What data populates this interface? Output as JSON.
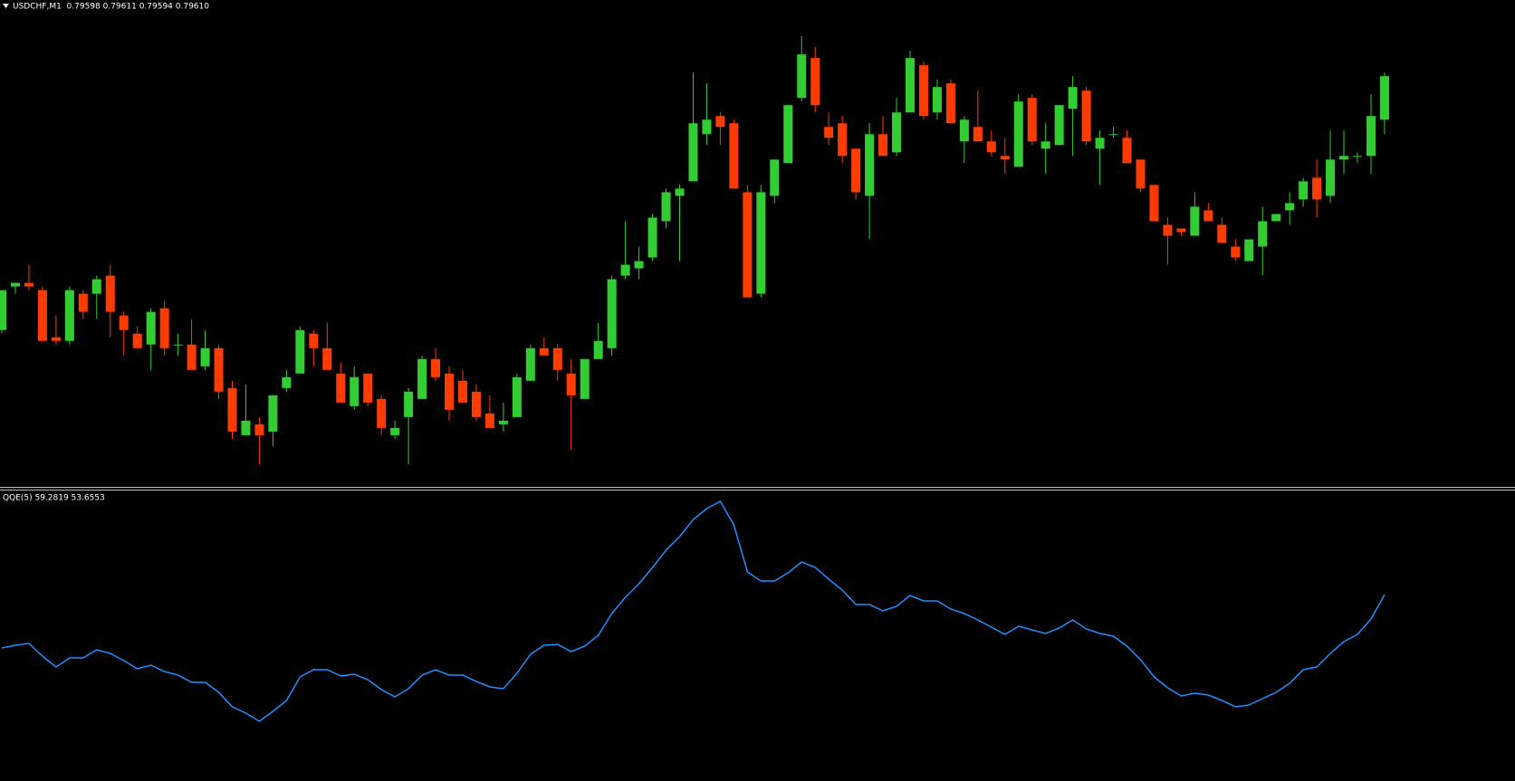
{
  "chart_data": [
    {
      "type": "candlestick",
      "title": "USDCHF,M1  0.79598 0.79611 0.79594 0.79610",
      "up_color": "#32cd32",
      "down_color": "#ff3c00",
      "ylim": [
        0.79497,
        0.79631
      ],
      "open": [
        0.7954,
        0.79552,
        0.79553,
        0.79551,
        0.79538,
        0.79537,
        0.7955,
        0.7955,
        0.79555,
        0.79544,
        0.79539,
        0.79536,
        0.79546,
        0.79536,
        0.79536,
        0.7953,
        0.79535,
        0.79524,
        0.79511,
        0.79514,
        0.79512,
        0.79524,
        0.79528,
        0.79539,
        0.79535,
        0.79528,
        0.79519,
        0.79528,
        0.79521,
        0.79511,
        0.79516,
        0.79521,
        0.79532,
        0.79528,
        0.79526,
        0.79523,
        0.79517,
        0.79514,
        0.79516,
        0.79526,
        0.79535,
        0.79535,
        0.79528,
        0.79521,
        0.79532,
        0.79535,
        0.79555,
        0.79557,
        0.7956,
        0.7957,
        0.79577,
        0.79581,
        0.79594,
        0.79599,
        0.79597,
        0.79578,
        0.7955,
        0.79577,
        0.79586,
        0.79604,
        0.79615,
        0.79596,
        0.79597,
        0.7959,
        0.79577,
        0.79594,
        0.79589,
        0.796,
        0.79613,
        0.796,
        0.79608,
        0.79592,
        0.79596,
        0.79592,
        0.79588,
        0.79585,
        0.79604,
        0.7959,
        0.79591,
        0.79601,
        0.79606,
        0.7959,
        0.79594,
        0.79593,
        0.79587,
        0.7958,
        0.79569,
        0.79568,
        0.79566,
        0.79573,
        0.79569,
        0.79563,
        0.79559,
        0.79563,
        0.7957,
        0.79573,
        0.79576,
        0.79582,
        0.79577,
        0.79587,
        0.79588,
        0.79588,
        0.79598
      ],
      "high": [
        0.79551,
        0.79553,
        0.79558,
        0.79552,
        0.79544,
        0.79552,
        0.79551,
        0.79555,
        0.79558,
        0.79545,
        0.79541,
        0.79546,
        0.79548,
        0.79539,
        0.79543,
        0.7954,
        0.79536,
        0.79526,
        0.79525,
        0.79516,
        0.79522,
        0.79529,
        0.79541,
        0.7954,
        0.79542,
        0.79531,
        0.7953,
        0.79528,
        0.79522,
        0.79515,
        0.79524,
        0.79533,
        0.79535,
        0.7953,
        0.79529,
        0.79525,
        0.79522,
        0.7952,
        0.79528,
        0.79536,
        0.79538,
        0.79536,
        0.79532,
        0.79532,
        0.79542,
        0.79555,
        0.7957,
        0.79563,
        0.79572,
        0.79579,
        0.7958,
        0.79611,
        0.79608,
        0.796,
        0.79598,
        0.7958,
        0.7958,
        0.79587,
        0.79602,
        0.79621,
        0.79618,
        0.796,
        0.79599,
        0.7959,
        0.79597,
        0.79599,
        0.79604,
        0.79617,
        0.79614,
        0.79609,
        0.79609,
        0.79599,
        0.79606,
        0.79595,
        0.79593,
        0.79605,
        0.79605,
        0.79597,
        0.79602,
        0.7961,
        0.79607,
        0.79595,
        0.79596,
        0.79595,
        0.79587,
        0.7958,
        0.79571,
        0.79568,
        0.79578,
        0.79575,
        0.79571,
        0.79565,
        0.79565,
        0.79574,
        0.79572,
        0.79578,
        0.79582,
        0.79587,
        0.79595,
        0.79595,
        0.79589,
        0.79605,
        0.79611
      ],
      "low": [
        0.79539,
        0.7955,
        0.79551,
        0.79537,
        0.79536,
        0.79536,
        0.79543,
        0.79543,
        0.79538,
        0.79533,
        0.79535,
        0.79529,
        0.79533,
        0.79533,
        0.79529,
        0.79529,
        0.79521,
        0.7951,
        0.79511,
        0.79503,
        0.79508,
        0.79523,
        0.79528,
        0.7953,
        0.79529,
        0.7952,
        0.79518,
        0.79519,
        0.79511,
        0.7951,
        0.79503,
        0.79521,
        0.79526,
        0.79515,
        0.7952,
        0.79515,
        0.79513,
        0.79512,
        0.79516,
        0.79526,
        0.79533,
        0.79526,
        0.79507,
        0.79521,
        0.79532,
        0.79533,
        0.79554,
        0.79554,
        0.79559,
        0.79568,
        0.79559,
        0.79581,
        0.79591,
        0.79591,
        0.79579,
        0.79549,
        0.79549,
        0.79575,
        0.79586,
        0.79603,
        0.796,
        0.79591,
        0.79586,
        0.79576,
        0.79565,
        0.79588,
        0.79588,
        0.796,
        0.79598,
        0.79598,
        0.79597,
        0.79586,
        0.79592,
        0.79588,
        0.79583,
        0.79585,
        0.79591,
        0.79583,
        0.79591,
        0.79588,
        0.79591,
        0.7958,
        0.79593,
        0.79586,
        0.79578,
        0.7957,
        0.79558,
        0.79566,
        0.79566,
        0.7957,
        0.79564,
        0.79559,
        0.79559,
        0.79555,
        0.7957,
        0.79569,
        0.79574,
        0.79571,
        0.79575,
        0.79583,
        0.79586,
        0.79583,
        0.79594
      ],
      "close": [
        0.79551,
        0.79553,
        0.79552,
        0.79537,
        0.79537,
        0.79551,
        0.79545,
        0.79554,
        0.79545,
        0.7954,
        0.79535,
        0.79545,
        0.79535,
        0.79536,
        0.79529,
        0.79535,
        0.79523,
        0.79512,
        0.79515,
        0.79511,
        0.79522,
        0.79527,
        0.7954,
        0.79535,
        0.79529,
        0.7952,
        0.79527,
        0.7952,
        0.79513,
        0.79513,
        0.79523,
        0.79532,
        0.79527,
        0.79518,
        0.7952,
        0.79516,
        0.79513,
        0.79515,
        0.79527,
        0.79535,
        0.79533,
        0.79529,
        0.79522,
        0.79532,
        0.79537,
        0.79554,
        0.79558,
        0.79559,
        0.79571,
        0.79578,
        0.79579,
        0.79597,
        0.79598,
        0.79596,
        0.79579,
        0.79549,
        0.79578,
        0.79587,
        0.79602,
        0.79616,
        0.79602,
        0.79593,
        0.79588,
        0.79578,
        0.79594,
        0.79588,
        0.796,
        0.79615,
        0.79599,
        0.79607,
        0.79597,
        0.79598,
        0.79592,
        0.79589,
        0.79587,
        0.79603,
        0.79592,
        0.79592,
        0.79602,
        0.79607,
        0.79592,
        0.79593,
        0.79594,
        0.79586,
        0.79579,
        0.7957,
        0.79566,
        0.79567,
        0.79574,
        0.7957,
        0.79564,
        0.7956,
        0.79565,
        0.7957,
        0.79572,
        0.79575,
        0.79581,
        0.79576,
        0.79587,
        0.79588,
        0.79588,
        0.79599,
        0.7961
      ]
    },
    {
      "type": "line",
      "title": "QQE(5) 59.2819 53.6553",
      "ylim": [
        28.9,
        82.1
      ],
      "series": [
        {
          "color": "#1e90ff",
          "values": [
            47.5,
            48.1,
            48.5,
            45.7,
            43.3,
            45.3,
            45.3,
            47.1,
            46.3,
            44.7,
            42.9,
            43.7,
            42.3,
            41.5,
            39.9,
            39.9,
            37.7,
            34.5,
            33.1,
            31.3,
            33.5,
            35.9,
            41.1,
            42.7,
            42.7,
            41.3,
            41.7,
            40.5,
            38.3,
            36.7,
            38.5,
            41.5,
            42.7,
            41.5,
            41.5,
            40.1,
            38.9,
            38.5,
            41.9,
            46.1,
            48.1,
            48.3,
            46.7,
            47.9,
            50.3,
            55.1,
            58.7,
            61.7,
            65.3,
            69.1,
            72.1,
            75.9,
            78.3,
            79.9,
            74.7,
            64.3,
            62.3,
            62.3,
            64.1,
            66.5,
            65.3,
            62.7,
            60.3,
            57.1,
            57.1,
            55.7,
            56.7,
            59.1,
            57.9,
            57.9,
            56.1,
            55.1,
            53.7,
            52.1,
            50.5,
            52.3,
            51.5,
            50.7,
            51.9,
            53.7,
            51.7,
            50.7,
            50.1,
            47.9,
            44.9,
            41.1,
            38.7,
            36.9,
            37.5,
            37.1,
            35.9,
            34.5,
            34.9,
            36.3,
            37.7,
            39.7,
            42.7,
            43.3,
            46.3,
            48.9,
            50.5,
            53.9,
            59.28
          ]
        }
      ]
    }
  ]
}
